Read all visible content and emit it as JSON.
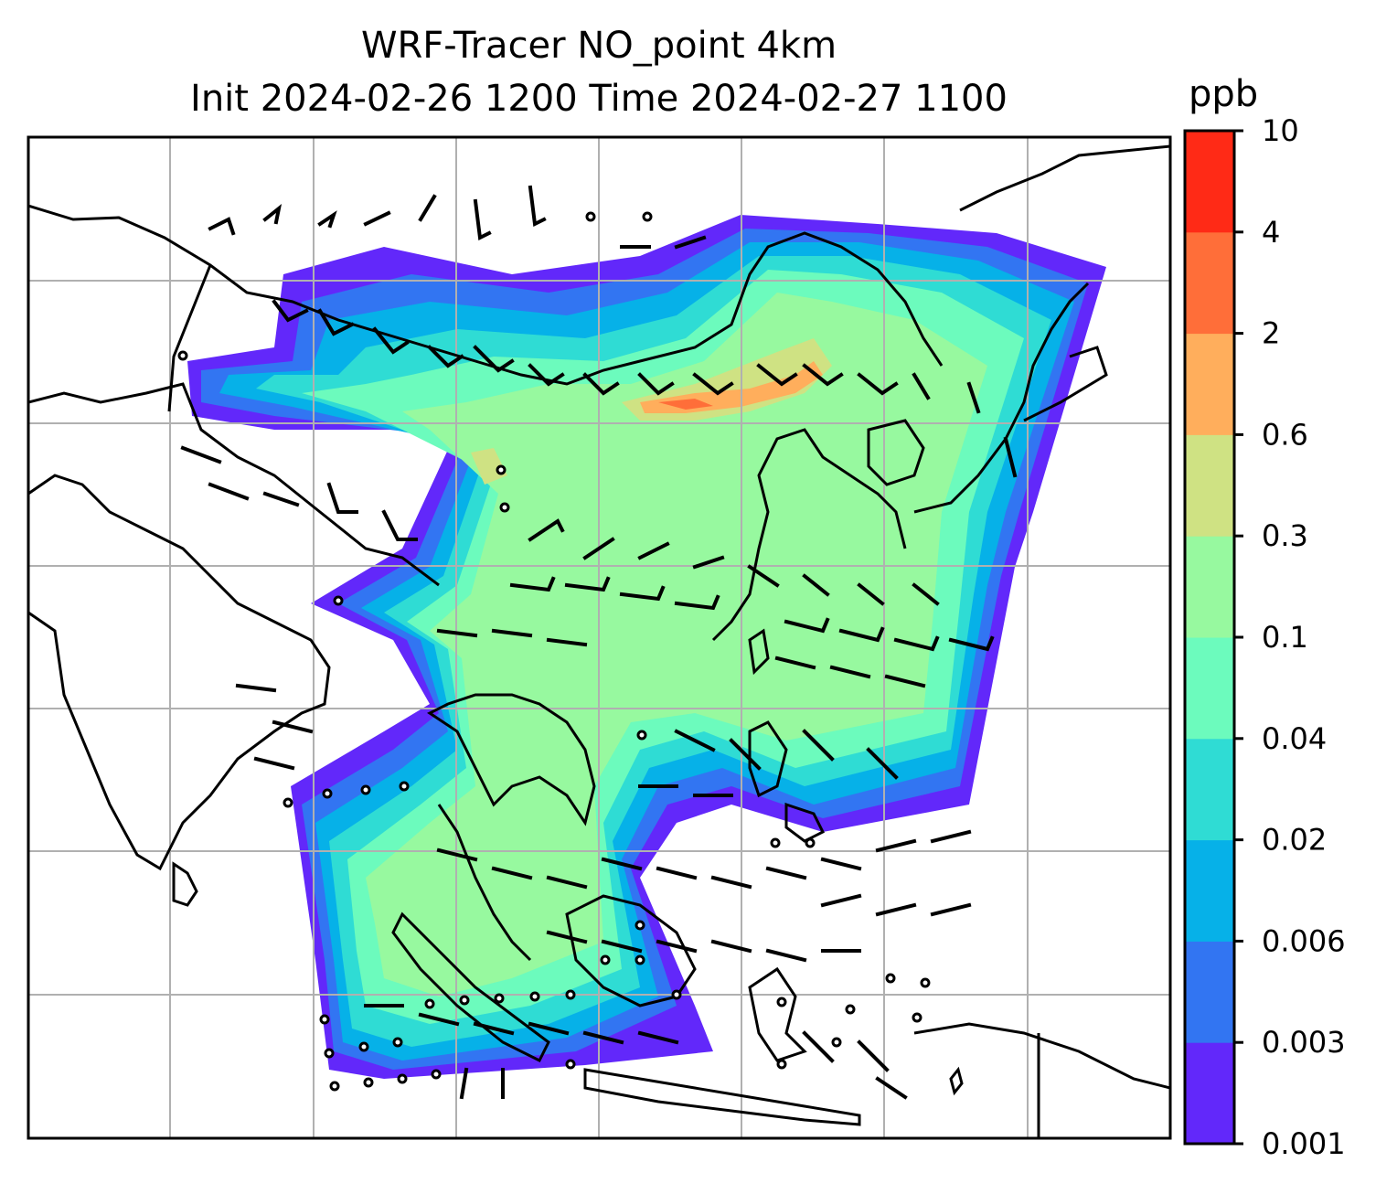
{
  "title": {
    "line1": "WRF-Tracer NO_point 4km",
    "line2": "Init 2024-02-26 1200 Time 2024-02-27 1100"
  },
  "colorbar": {
    "unit": "ppb",
    "levels": [
      "0.001",
      "0.003",
      "0.006",
      "0.02",
      "0.04",
      "0.1",
      "0.3",
      "0.6",
      "2",
      "4",
      "10"
    ],
    "colors": [
      "#6228fa",
      "#3275f2",
      "#06b1e8",
      "#2fdcd4",
      "#6cfbbd",
      "#97f99f",
      "#cfe283",
      "#ffae5c",
      "#ff6e39",
      "#ff2a16"
    ]
  },
  "map": {
    "gridlines": true,
    "coastline_color": "#000000",
    "wind_barb_color": "#000000",
    "grid_color": "#b0b0b0"
  }
}
